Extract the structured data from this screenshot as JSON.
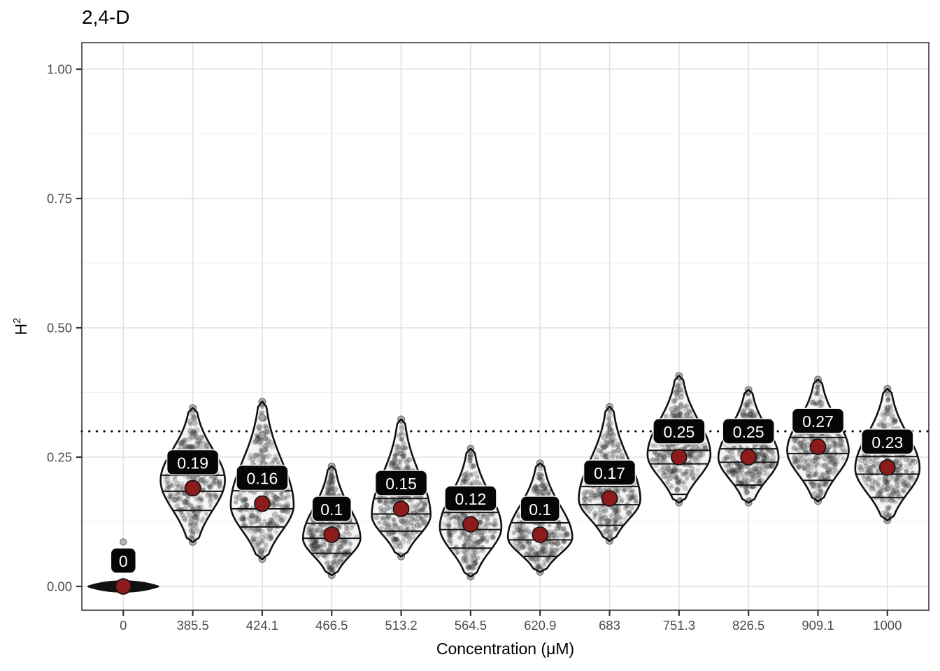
{
  "title": "2,4-D",
  "y_axis": {
    "label_base": "H",
    "label_sup": "2",
    "ticks": [
      {
        "label": "1.00",
        "value": 1.0
      },
      {
        "label": "0.75",
        "value": 0.75
      },
      {
        "label": "0.50",
        "value": 0.5
      },
      {
        "label": "0.25",
        "value": 0.25
      },
      {
        "label": "0.00",
        "value": 0.0
      }
    ]
  },
  "x_axis": {
    "label": "Concentration (μM)",
    "categories": [
      "0",
      "385.5",
      "424.1",
      "466.5",
      "513.2",
      "564.5",
      "620.9",
      "683",
      "751.3",
      "826.5",
      "909.1",
      "1000"
    ]
  },
  "colors": {
    "background": "#ffffff",
    "panel_border": "#2b2b2b",
    "grid_major": "#e4e4e4",
    "grid_minor": "#f1f1f1",
    "tick_mark": "#333333",
    "tick_label": "#4d4d4d",
    "violin_outline": "#111111",
    "violin_fill": "#f4f4f4",
    "texture_point": "#2e2e2e",
    "tip_point": "#a8a8a8",
    "tip_point_edge": "#6a6a6a",
    "mean_point": "#8e1b1b",
    "label_bg": "#060606",
    "label_border": "#ffffff",
    "label_text": "#ffffff",
    "reference_line": "#111111"
  },
  "chart_data": {
    "type": "violin",
    "title": "2,4-D",
    "xlabel": "Concentration (μM)",
    "ylabel": "H^2",
    "ylim": [
      -0.05,
      1.05
    ],
    "grid": true,
    "y_major_ticks": [
      0,
      0.25,
      0.5,
      0.75,
      1.0
    ],
    "y_minor_ticks": [
      0.125,
      0.375,
      0.625,
      0.875
    ],
    "reference_line": 0.3,
    "categories": [
      "0",
      "385.5",
      "424.1",
      "466.5",
      "513.2",
      "564.5",
      "620.9",
      "683",
      "751.3",
      "826.5",
      "909.1",
      "1000"
    ],
    "series": [
      {
        "concentration": "0",
        "mean_label": "0",
        "mean": 0.0,
        "min": -0.008,
        "max": 0.012,
        "mode": 0.001,
        "q1": null,
        "median": null,
        "q3": null,
        "flat": true,
        "outliers": [
          0.086
        ]
      },
      {
        "concentration": "385.5",
        "mean_label": "0.19",
        "mean": 0.19,
        "min": 0.086,
        "max": 0.345,
        "mode": 0.205,
        "q1": 0.147,
        "median": 0.184,
        "q3": 0.215,
        "flat": false,
        "outliers": []
      },
      {
        "concentration": "424.1",
        "mean_label": "0.16",
        "mean": 0.16,
        "min": 0.053,
        "max": 0.357,
        "mode": 0.157,
        "q1": 0.115,
        "median": 0.15,
        "q3": 0.185,
        "flat": false,
        "outliers": [
          0.326,
          0.293
        ]
      },
      {
        "concentration": "466.5",
        "mean_label": "0.1",
        "mean": 0.1,
        "min": 0.022,
        "max": 0.232,
        "mode": 0.093,
        "q1": 0.064,
        "median": 0.093,
        "q3": 0.122,
        "flat": false,
        "outliers": []
      },
      {
        "concentration": "513.2",
        "mean_label": "0.15",
        "mean": 0.15,
        "min": 0.058,
        "max": 0.323,
        "mode": 0.138,
        "q1": 0.107,
        "median": 0.14,
        "q3": 0.17,
        "flat": false,
        "outliers": []
      },
      {
        "concentration": "564.5",
        "mean_label": "0.12",
        "mean": 0.12,
        "min": 0.019,
        "max": 0.266,
        "mode": 0.114,
        "q1": 0.074,
        "median": 0.11,
        "q3": 0.143,
        "flat": false,
        "outliers": []
      },
      {
        "concentration": "620.9",
        "mean_label": "0.1",
        "mean": 0.1,
        "min": 0.028,
        "max": 0.238,
        "mode": 0.095,
        "q1": 0.058,
        "median": 0.09,
        "q3": 0.123,
        "flat": false,
        "outliers": []
      },
      {
        "concentration": "683",
        "mean_label": "0.17",
        "mean": 0.17,
        "min": 0.088,
        "max": 0.347,
        "mode": 0.168,
        "q1": 0.118,
        "median": 0.158,
        "q3": 0.193,
        "flat": false,
        "outliers": []
      },
      {
        "concentration": "751.3",
        "mean_label": "0.25",
        "mean": 0.25,
        "min": 0.162,
        "max": 0.407,
        "mode": 0.255,
        "q1": 0.178,
        "median": 0.237,
        "q3": 0.263,
        "flat": false,
        "outliers": []
      },
      {
        "concentration": "826.5",
        "mean_label": "0.25",
        "mean": 0.25,
        "min": 0.162,
        "max": 0.38,
        "mode": 0.249,
        "q1": 0.196,
        "median": 0.24,
        "q3": 0.266,
        "flat": false,
        "outliers": []
      },
      {
        "concentration": "909.1",
        "mean_label": "0.27",
        "mean": 0.27,
        "min": 0.165,
        "max": 0.4,
        "mode": 0.262,
        "q1": 0.205,
        "median": 0.257,
        "q3": 0.288,
        "flat": false,
        "outliers": []
      },
      {
        "concentration": "1000",
        "mean_label": "0.23",
        "mean": 0.23,
        "min": 0.128,
        "max": 0.382,
        "mode": 0.228,
        "q1": 0.172,
        "median": 0.217,
        "q3": 0.251,
        "flat": false,
        "outliers": []
      }
    ]
  }
}
